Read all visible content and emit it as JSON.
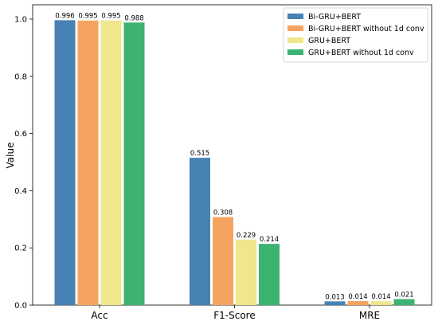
{
  "chart_data": {
    "type": "bar",
    "title": "",
    "xlabel": "",
    "ylabel": "Value",
    "ylim": [
      0,
      1.05
    ],
    "yticks": [
      "0.0",
      "0.2",
      "0.4",
      "0.6",
      "0.8",
      "1.0"
    ],
    "categories": [
      "Acc",
      "F1-Score",
      "MRE"
    ],
    "series": [
      {
        "name": "Bi-GRU+BERT",
        "color": "#4682b4",
        "values": [
          0.996,
          0.515,
          0.013
        ],
        "labels": [
          "0.996",
          "0.515",
          "0.013"
        ]
      },
      {
        "name": "Bi-GRU+BERT without 1d conv",
        "color": "#f4a460",
        "values": [
          0.995,
          0.308,
          0.014
        ],
        "labels": [
          "0.995",
          "0.308",
          "0.014"
        ]
      },
      {
        "name": "GRU+BERT",
        "color": "#f0e68c",
        "values": [
          0.995,
          0.229,
          0.014
        ],
        "labels": [
          "0.995",
          "0.229",
          "0.014"
        ]
      },
      {
        "name": "GRU+BERT without 1d conv",
        "color": "#3cb371",
        "values": [
          0.988,
          0.214,
          0.021
        ],
        "labels": [
          "0.988",
          "0.214",
          "0.021"
        ]
      }
    ],
    "legend": "top-right",
    "grid": false
  }
}
